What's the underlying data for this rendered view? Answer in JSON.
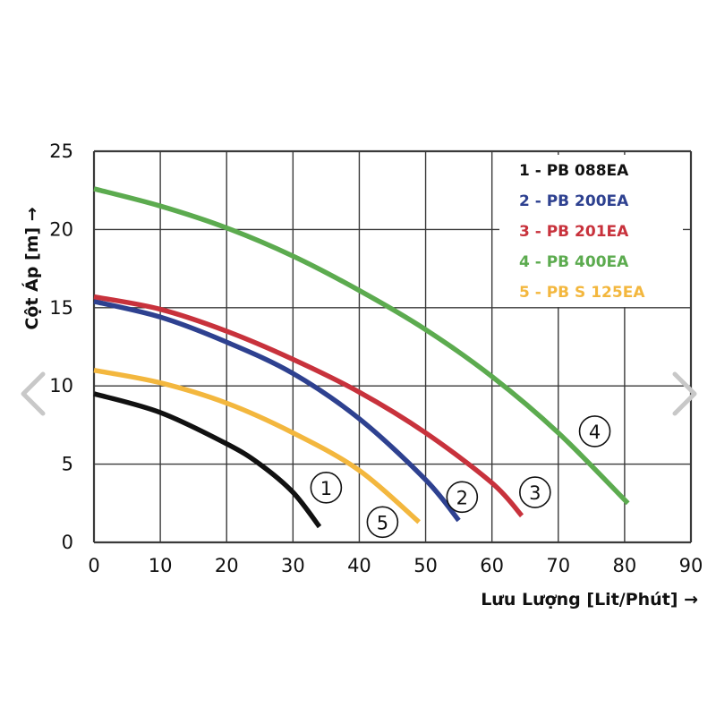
{
  "nav": {
    "prev_icon": "chevron-left-icon",
    "next_icon": "chevron-right-icon",
    "color": "#c8c8c8"
  },
  "chart_data": {
    "type": "line",
    "title": "",
    "xlabel": "Lưu Lượng [Lit/Phút] →",
    "ylabel": "Cột Áp [m] →",
    "xlim": [
      0,
      90
    ],
    "ylim": [
      0,
      25
    ],
    "xticks": [
      0,
      10,
      20,
      30,
      40,
      50,
      60,
      70,
      80,
      90
    ],
    "yticks": [
      0,
      5,
      10,
      15,
      20,
      25
    ],
    "grid": true,
    "legend_position": "top-right",
    "series": [
      {
        "name": "1 - PB 088EA",
        "marker": "1",
        "color": "#111111",
        "x": [
          0,
          10,
          20,
          25,
          30,
          34
        ],
        "y": [
          9.5,
          8.3,
          6.3,
          5.0,
          3.2,
          1.0
        ],
        "marker_at": [
          35,
          3.5
        ]
      },
      {
        "name": "2 - PB 200EA",
        "marker": "2",
        "color": "#2e4190",
        "x": [
          0,
          10,
          20,
          30,
          40,
          50,
          55
        ],
        "y": [
          15.4,
          14.4,
          12.8,
          10.8,
          7.9,
          4.0,
          1.4
        ],
        "marker_at": [
          55.5,
          2.9
        ]
      },
      {
        "name": "3 - PB 201EA",
        "marker": "3",
        "color": "#c8323c",
        "x": [
          0,
          10,
          20,
          30,
          40,
          50,
          60,
          64.5
        ],
        "y": [
          15.7,
          14.9,
          13.5,
          11.7,
          9.6,
          7.0,
          3.8,
          1.7
        ],
        "marker_at": [
          66.5,
          3.2
        ]
      },
      {
        "name": "4 - PB 400EA",
        "marker": "4",
        "color": "#5cab4f",
        "x": [
          0,
          10,
          20,
          30,
          40,
          50,
          60,
          70,
          80.5
        ],
        "y": [
          22.6,
          21.5,
          20.1,
          18.3,
          16.1,
          13.6,
          10.6,
          7.0,
          2.5
        ],
        "marker_at": [
          75.5,
          7.1
        ]
      },
      {
        "name": "5 - PB S 125EA",
        "marker": "5",
        "color": "#f3b73e",
        "x": [
          0,
          10,
          20,
          30,
          40,
          49
        ],
        "y": [
          11.0,
          10.2,
          8.9,
          7.0,
          4.6,
          1.3
        ],
        "marker_at": [
          43.5,
          1.3
        ]
      }
    ]
  }
}
